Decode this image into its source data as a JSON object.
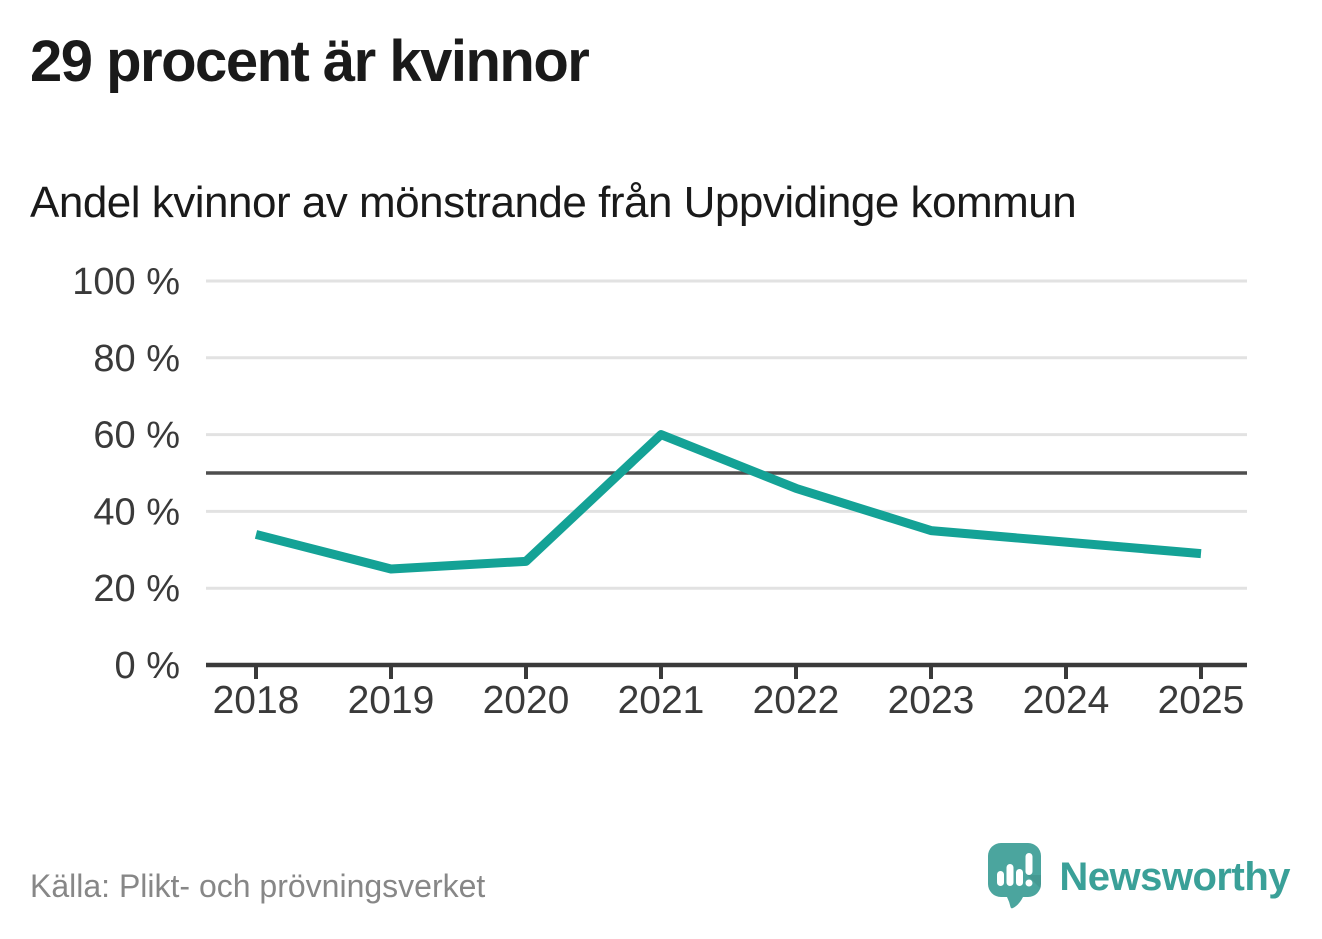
{
  "header": {
    "title": "29 procent är kvinnor",
    "subtitle": "Andel kvinnor av mönstrande från Uppvidinge kommun"
  },
  "chart_data": {
    "type": "line",
    "title": "Andel kvinnor av mönstrande från Uppvidinge kommun",
    "categories": [
      "2018",
      "2019",
      "2020",
      "2021",
      "2022",
      "2023",
      "2024",
      "2025"
    ],
    "values": [
      34,
      25,
      27,
      60,
      46,
      35,
      32,
      29
    ],
    "xlabel": "",
    "ylabel": "",
    "ylim": [
      0,
      100
    ],
    "yticks": [
      0,
      20,
      40,
      60,
      80,
      100
    ],
    "ytick_suffix": " %",
    "reference_line": 50,
    "grid": true,
    "legend": false,
    "line_color": "#14a296",
    "grid_color": "#e2e2e2",
    "reference_color": "#4e4e4e",
    "axis_color": "#3a3a3a",
    "label_color": "#3a3a3a"
  },
  "footer": {
    "source": "Källa: Plikt- och prövningsverket",
    "brand": "Newsworthy",
    "brand_color": "#3aa098",
    "logo_color": "#4ba59e"
  }
}
